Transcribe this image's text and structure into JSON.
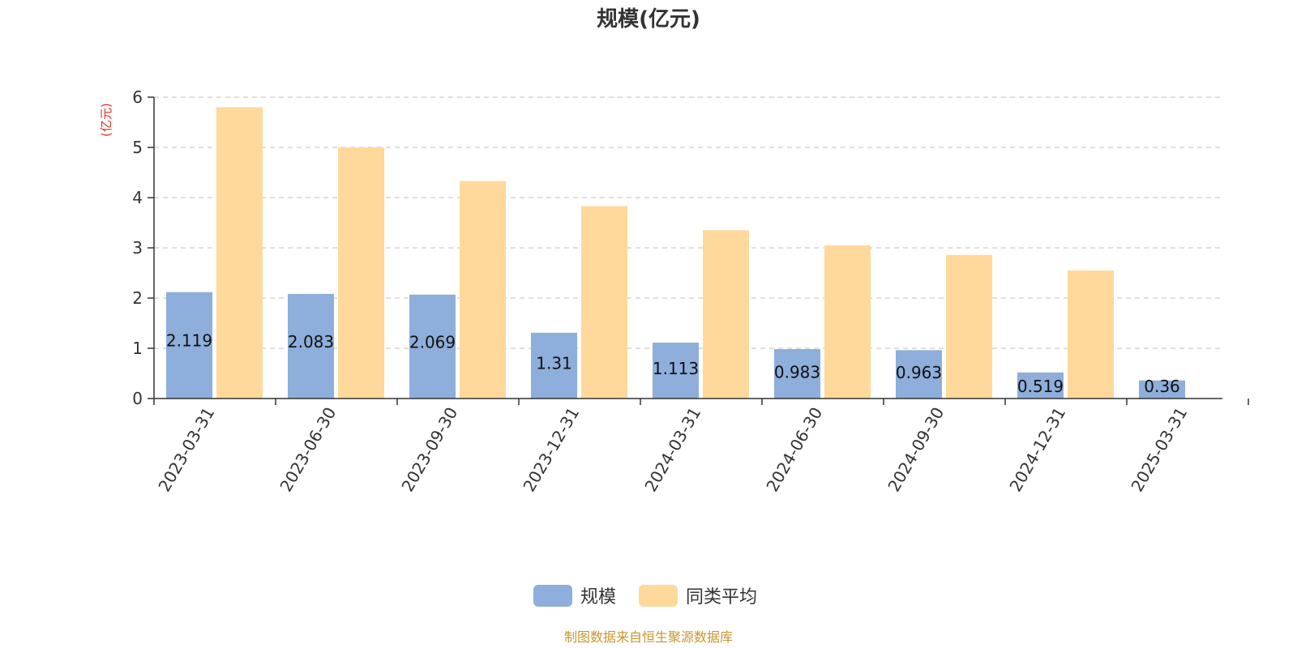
{
  "chart_data": {
    "type": "bar",
    "title": "规模(亿元)",
    "y_unit": "(亿元)",
    "categories": [
      "2023-03-31",
      "2023-06-30",
      "2023-09-30",
      "2023-12-31",
      "2024-03-31",
      "2024-06-30",
      "2024-09-30",
      "2024-12-31",
      "2025-03-31"
    ],
    "series": [
      {
        "name": "规模",
        "color": "#8eaedb",
        "values": [
          2.119,
          2.083,
          2.069,
          1.31,
          1.113,
          0.983,
          0.963,
          0.519,
          0.36
        ],
        "labels": [
          "2.119",
          "2.083",
          "2.069",
          "1.31",
          "1.113",
          "0.983",
          "0.963",
          "0.519",
          "0.36"
        ]
      },
      {
        "name": "同类平均",
        "color": "#fed99b",
        "values": [
          5.8,
          5.0,
          4.33,
          3.83,
          3.35,
          3.05,
          2.86,
          2.55,
          null
        ]
      }
    ],
    "ylim": [
      0,
      6
    ],
    "yticks": [
      "0",
      "1",
      "2",
      "3",
      "4",
      "5",
      "6"
    ],
    "grid": true,
    "legend_position": "bottom-center"
  },
  "footer": {
    "source": "制图数据来自恒生聚源数据库"
  }
}
